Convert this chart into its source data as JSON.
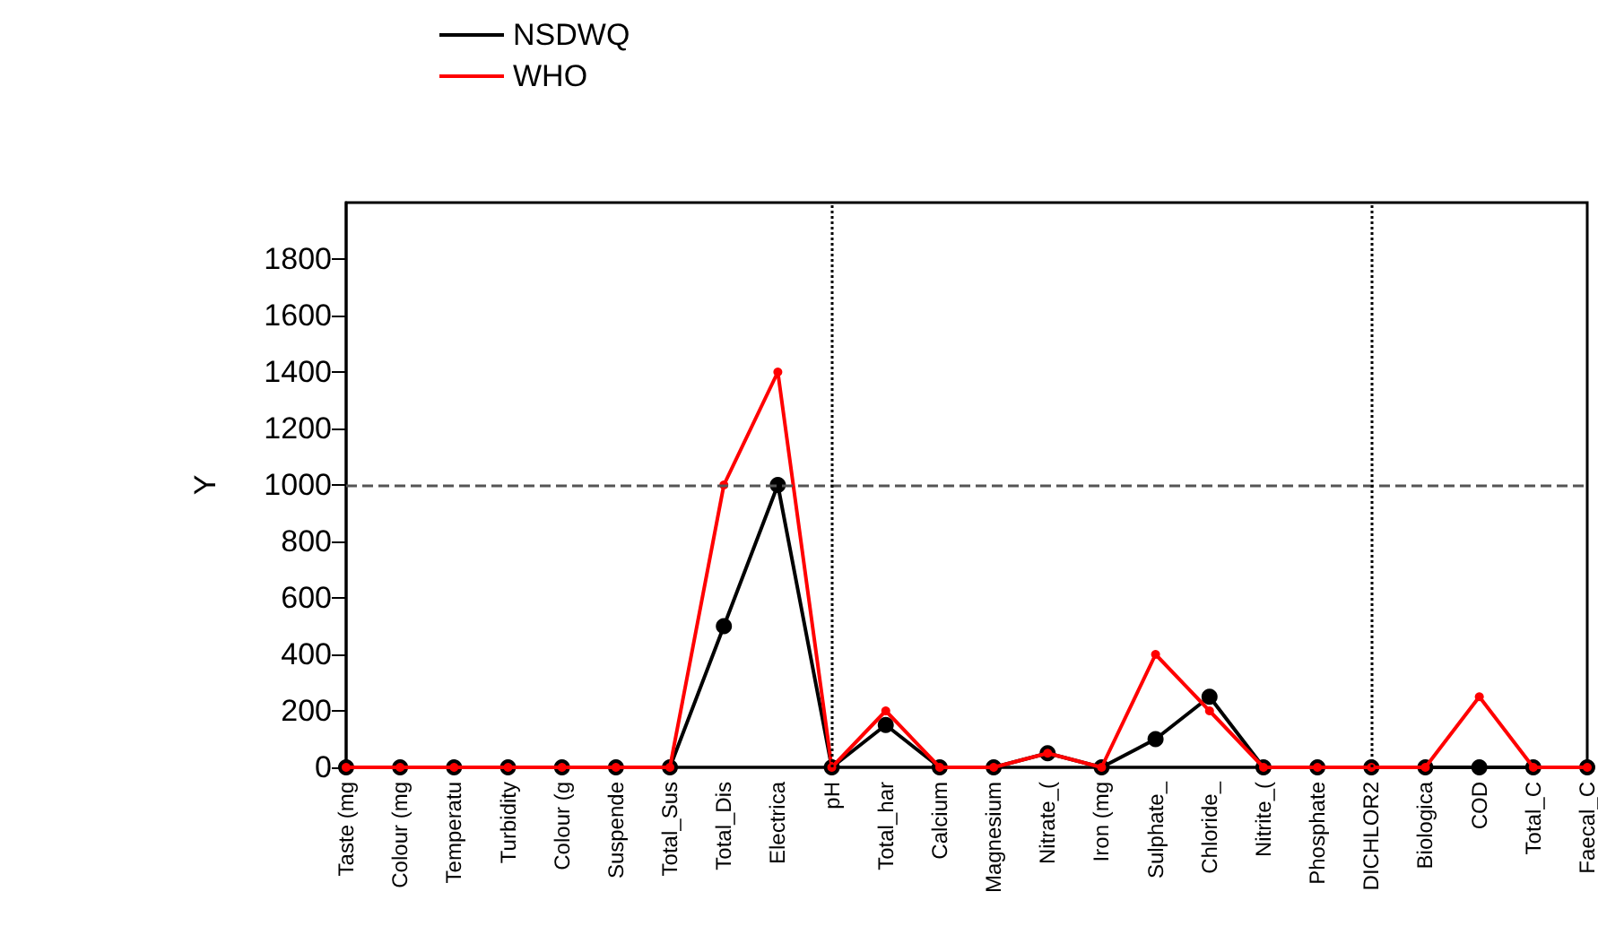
{
  "chart_data": {
    "type": "line",
    "ylabel": "Y",
    "categories": [
      "Taste (mg",
      "Colour (mg",
      "Temperatu",
      "Turbidity",
      "Colour (g",
      "Suspende",
      "Total_Sus",
      "Total_Dis",
      "Electrica",
      "pH",
      "Total_har",
      "Calcium",
      "Magnesium",
      "Nitrate_(",
      "Iron (mg",
      "Sulphate_",
      "Chloride_",
      "Nitrite_(",
      "Phosphate",
      "DICHLOR2",
      "Biologica",
      "COD",
      "Total_C",
      "Faecal_C"
    ],
    "series": [
      {
        "name": "NSDWQ",
        "color": "#000000",
        "values": [
          0,
          0,
          0,
          0,
          0,
          0,
          0,
          500,
          1000,
          0,
          150,
          0,
          0,
          50,
          0,
          100,
          250,
          0,
          0,
          0,
          0,
          0,
          0,
          0
        ]
      },
      {
        "name": "WHO",
        "color": "#ff0000",
        "values": [
          0,
          0,
          0,
          0,
          0,
          0,
          0,
          1000,
          1400,
          0,
          200,
          0,
          0,
          50,
          0,
          400,
          200,
          0,
          0,
          0,
          0,
          250,
          0,
          0
        ]
      }
    ],
    "ylim": [
      0,
      2000
    ],
    "yticks": [
      0,
      200,
      400,
      600,
      800,
      1000,
      1200,
      1400,
      1600,
      1800
    ],
    "ref_lines": [
      {
        "axis": "y",
        "value": 1000,
        "color": "#555555",
        "line_style": "dashed"
      },
      {
        "axis": "x",
        "value": "pH",
        "color": "#000000",
        "line_style": "dotted"
      },
      {
        "axis": "x",
        "value": "DICHLOR2",
        "color": "#000000",
        "line_style": "dotted"
      }
    ],
    "grid": false,
    "legend": "top left",
    "marker": "circle",
    "line_style": "solid"
  }
}
